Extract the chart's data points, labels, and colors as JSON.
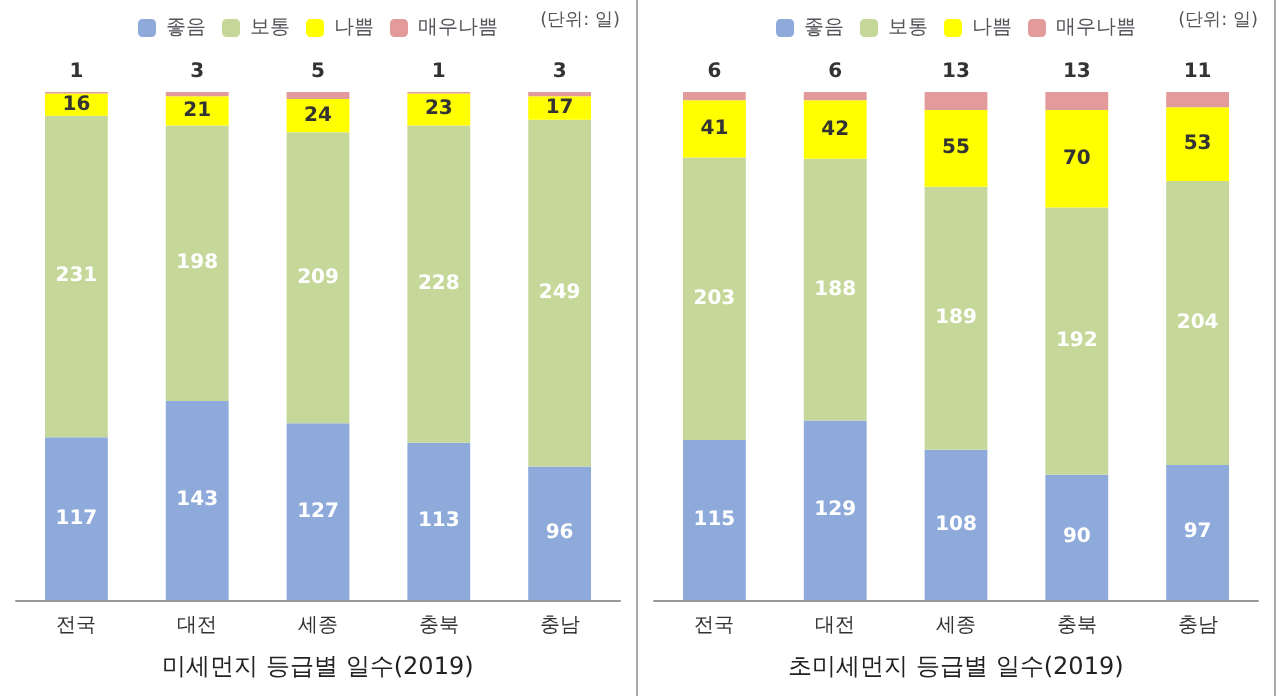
{
  "chart_data": [
    {
      "type": "bar",
      "title": "미세먼지 등급별 일수(2019)",
      "categories": [
        "전국",
        "대전",
        "세종",
        "충북",
        "충남"
      ],
      "stacked": true,
      "data_labels": true,
      "legend": "top",
      "annotations": [
        "(단위: 일)"
      ],
      "series": [
        {
          "name": "좋음",
          "color": "#8eaadb",
          "values": [
            117,
            143,
            127,
            113,
            96
          ]
        },
        {
          "name": "보통",
          "color": "#c5d89a",
          "values": [
            231,
            198,
            209,
            228,
            249
          ]
        },
        {
          "name": "나쁨",
          "color": "#ffff00",
          "values": [
            16,
            21,
            24,
            23,
            17
          ]
        },
        {
          "name": "매우나쁨",
          "color": "#e39a9a",
          "values": [
            1,
            3,
            5,
            1,
            3
          ]
        }
      ]
    },
    {
      "type": "bar",
      "title": "초미세먼지 등급별 일수(2019)",
      "categories": [
        "전국",
        "대전",
        "세종",
        "충북",
        "충남"
      ],
      "stacked": true,
      "data_labels": true,
      "legend": "top",
      "annotations": [
        "(단위: 일)"
      ],
      "series": [
        {
          "name": "좋음",
          "color": "#8eaadb",
          "values": [
            115,
            129,
            108,
            90,
            97
          ]
        },
        {
          "name": "보통",
          "color": "#c5d89a",
          "values": [
            203,
            188,
            189,
            192,
            204
          ]
        },
        {
          "name": "나쁨",
          "color": "#ffff00",
          "values": [
            41,
            42,
            55,
            70,
            53
          ]
        },
        {
          "name": "매우나쁨",
          "color": "#e39a9a",
          "values": [
            6,
            6,
            13,
            13,
            11
          ]
        }
      ]
    }
  ]
}
